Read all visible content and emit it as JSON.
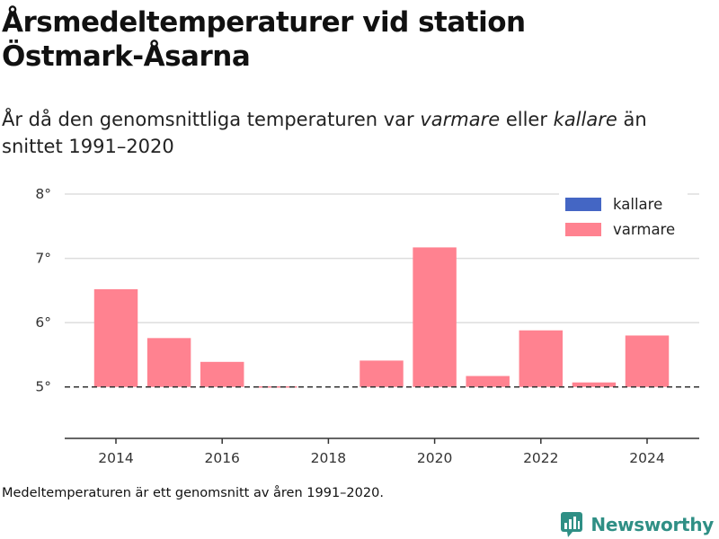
{
  "title_line1": "Årsmedeltemperaturer vid station",
  "title_line2": "Östmark-Åsarna",
  "subtitle": {
    "part1": "År då den genomsnittliga temperaturen var ",
    "warm": "varmare",
    "part2": " eller ",
    "cold": "kallare",
    "part3": " än snittet 1991–2020"
  },
  "footnote": "Medeltemperaturen är ett genomsnitt av åren 1991–2020.",
  "brand": {
    "name": "Newsworthy",
    "icon": "newsworthy-logo-icon",
    "color": "#2f8f85"
  },
  "chart_data": {
    "type": "bar",
    "baseline": 5.0,
    "x": [
      2014,
      2015,
      2016,
      2017,
      2018,
      2019,
      2020,
      2021,
      2022,
      2023,
      2024
    ],
    "values": [
      6.52,
      5.76,
      5.39,
      5.01,
      null,
      5.41,
      7.17,
      5.17,
      5.88,
      5.07,
      5.8
    ],
    "ylim": [
      4.2,
      8.0
    ],
    "y_ticks": [
      5,
      6,
      7,
      8
    ],
    "y_tick_labels": [
      "5°",
      "6°",
      "7°",
      "8°"
    ],
    "x_ticks": [
      2014,
      2016,
      2018,
      2020,
      2022,
      2024
    ],
    "x_tick_labels": [
      "2014",
      "2016",
      "2018",
      "2020",
      "2022",
      "2024"
    ],
    "grid": true,
    "legend": {
      "placement": "top-right",
      "items": [
        {
          "label": "kallare",
          "color": "#4466c4"
        },
        {
          "label": "varmare",
          "color": "#ff8290"
        }
      ]
    },
    "colors": {
      "warm": "#ff8290",
      "cold": "#4466c4"
    }
  }
}
